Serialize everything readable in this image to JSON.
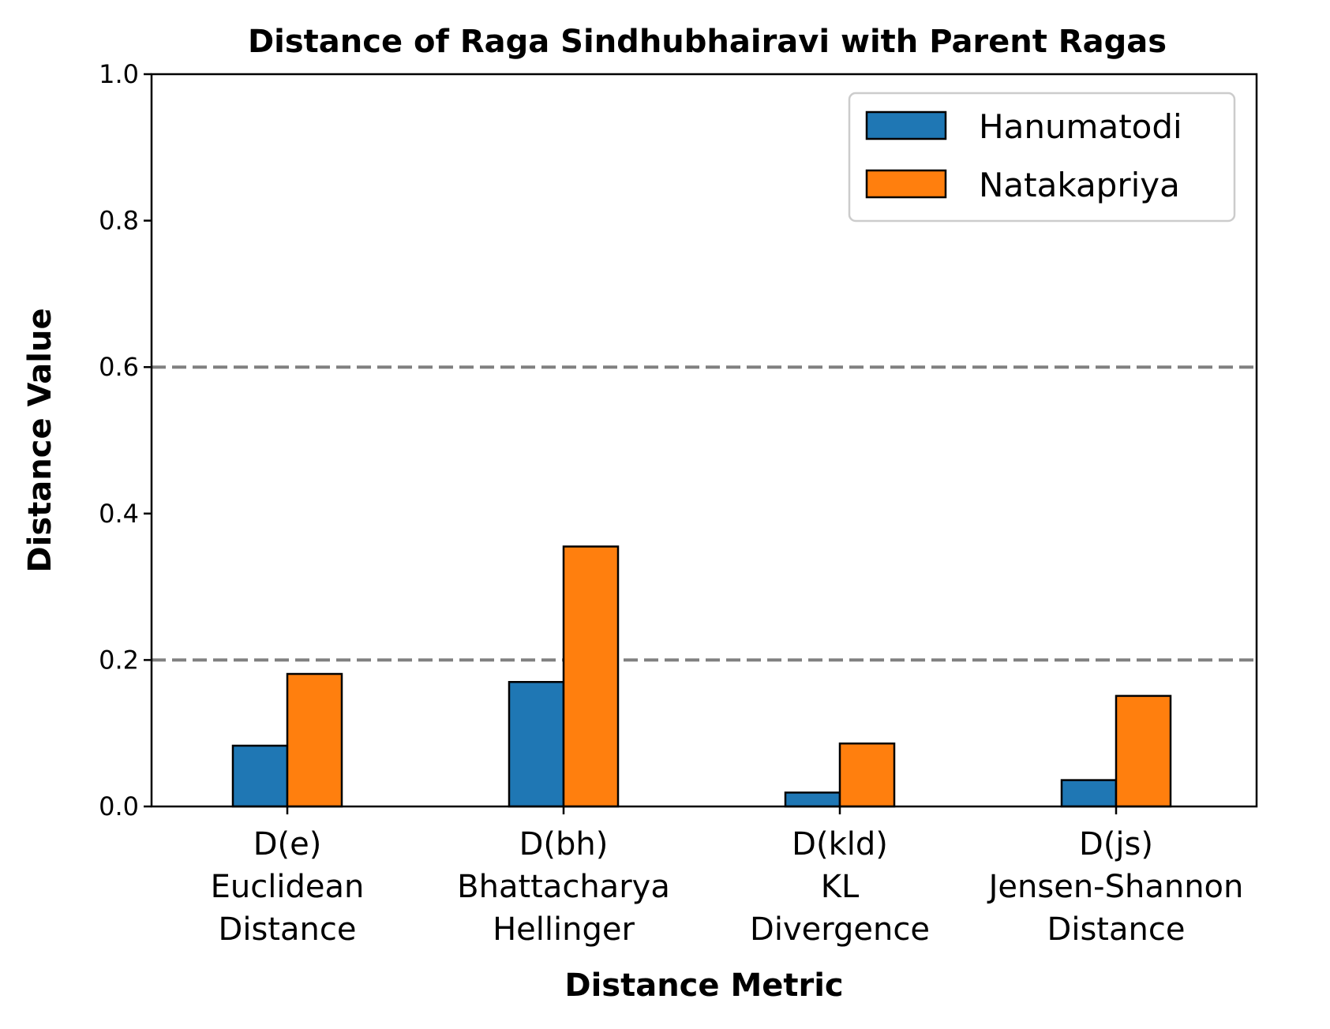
{
  "chart_data": {
    "type": "bar",
    "title": "Distance of Raga Sindhubhairavi with Parent Ragas",
    "xlabel": "Distance Metric",
    "ylabel": "Distance Value",
    "categories": [
      [
        "D(e)",
        "Euclidean",
        "Distance"
      ],
      [
        "D(bh)",
        "Bhattacharya",
        "Hellinger"
      ],
      [
        "D(kld)",
        "KL",
        "Divergence"
      ],
      [
        "D(js)",
        "Jensen-Shannon",
        "Distance"
      ]
    ],
    "series": [
      {
        "name": "Hanumatodi",
        "color": "#1f77b4",
        "values": [
          0.083,
          0.17,
          0.019,
          0.036
        ]
      },
      {
        "name": "Natakapriya",
        "color": "#ff7f0e",
        "values": [
          0.181,
          0.355,
          0.086,
          0.151
        ]
      }
    ],
    "ylim": [
      0,
      1
    ],
    "yticks": [
      "0.0",
      "0.2",
      "0.4",
      "0.6",
      "0.8",
      "1.0"
    ],
    "ytick_values": [
      0,
      0.2,
      0.4,
      0.6,
      0.8,
      1.0
    ],
    "reference_lines": [
      0.2,
      0.6
    ],
    "reference_line_color": "#808080",
    "legend_position": "top-right",
    "grid": false
  }
}
